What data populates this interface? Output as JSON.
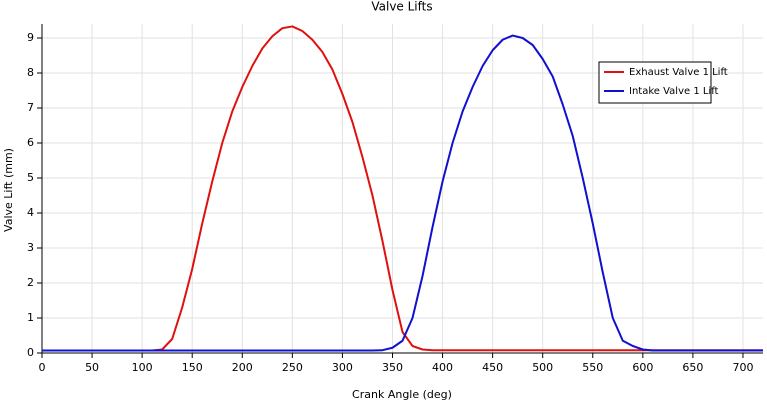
{
  "chart_data": {
    "type": "line",
    "title": "Valve Lifts",
    "x_label": "Crank Angle (deg)",
    "y_label": "Valve Lift (mm)",
    "x": [
      0,
      50,
      100,
      110,
      120,
      130,
      140,
      150,
      160,
      170,
      180,
      190,
      200,
      210,
      220,
      230,
      240,
      250,
      260,
      270,
      280,
      290,
      300,
      310,
      320,
      330,
      340,
      350,
      360,
      370,
      380,
      390,
      400,
      410,
      420,
      430,
      440,
      450,
      460,
      470,
      480,
      490,
      500,
      510,
      520,
      530,
      540,
      550,
      560,
      570,
      580,
      590,
      600,
      610,
      620,
      660,
      720
    ],
    "series": [
      {
        "name": "Exhaust Valve 1 Lift",
        "color": "#e01010",
        "values": [
          0.07,
          0.07,
          0.07,
          0.07,
          0.1,
          0.4,
          1.3,
          2.4,
          3.7,
          4.9,
          6.0,
          6.9,
          7.6,
          8.2,
          8.7,
          9.05,
          9.28,
          9.33,
          9.2,
          8.95,
          8.6,
          8.1,
          7.4,
          6.6,
          5.6,
          4.5,
          3.2,
          1.8,
          0.6,
          0.2,
          0.1,
          0.08,
          0.08,
          0.08,
          0.08,
          0.08,
          0.08,
          0.08,
          0.08,
          0.08,
          0.08,
          0.08,
          0.08,
          0.08,
          0.08,
          0.08,
          0.08,
          0.08,
          0.08,
          0.08,
          0.08,
          0.08,
          0.08,
          0.08,
          0.08,
          0.08,
          0.08
        ]
      },
      {
        "name": "Intake Valve 1 Lift",
        "color": "#1010d0",
        "values": [
          0.07,
          0.07,
          0.07,
          0.07,
          0.07,
          0.07,
          0.07,
          0.07,
          0.07,
          0.07,
          0.07,
          0.07,
          0.07,
          0.07,
          0.07,
          0.07,
          0.07,
          0.07,
          0.07,
          0.07,
          0.07,
          0.07,
          0.07,
          0.07,
          0.07,
          0.07,
          0.08,
          0.15,
          0.35,
          1.0,
          2.2,
          3.6,
          4.9,
          6.0,
          6.9,
          7.6,
          8.2,
          8.65,
          8.95,
          9.07,
          9.0,
          8.8,
          8.4,
          7.9,
          7.1,
          6.2,
          5.0,
          3.7,
          2.3,
          1.0,
          0.35,
          0.2,
          0.1,
          0.07,
          0.07,
          0.07,
          0.07
        ]
      }
    ],
    "xlim": [
      0,
      720
    ],
    "ylim": [
      0,
      9.4
    ],
    "xticks": [
      0,
      50,
      100,
      150,
      200,
      250,
      300,
      350,
      400,
      450,
      500,
      550,
      600,
      650,
      700
    ],
    "yticks": [
      0,
      1,
      2,
      3,
      4,
      5,
      6,
      7,
      8,
      9
    ],
    "grid": true,
    "legend": "upper right"
  }
}
